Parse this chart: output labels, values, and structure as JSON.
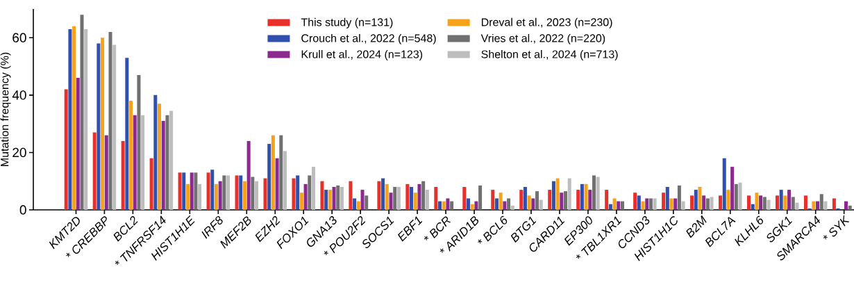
{
  "chart_data": {
    "type": "bar",
    "ylabel": "Mutation frequency (%)",
    "categories": [
      "KMT2D",
      "* CREBBP",
      "BCL2",
      "* TNFRSF14",
      "HIST1H1E",
      "IRF8",
      "MEF2B",
      "EZH2",
      "FOXO1",
      "GNA13",
      "* POU2F2",
      "SOCS1",
      "EBF1",
      "* BCR",
      "* ARID1B",
      "* BCL6",
      "BTG1",
      "CARD11",
      "EP300",
      "* TBL1XR1",
      "CCND3",
      "HIST1H1C",
      "B2M",
      "BCL7A",
      "KLHL6",
      "SGK1",
      "SMARCA4",
      "* SYK"
    ],
    "series": [
      {
        "name": "This study (n=131)",
        "color": "#e8302a",
        "values": [
          42,
          27,
          24,
          18,
          13,
          13,
          12,
          11,
          11,
          10,
          10,
          10,
          9,
          8,
          8,
          7,
          7,
          7,
          7,
          7,
          6,
          6,
          5,
          5,
          5,
          5,
          5,
          4
        ]
      },
      {
        "name": "Crouch et al., 2022 (n=548)",
        "color": "#3050b0",
        "values": [
          63,
          58,
          53,
          40,
          13,
          14,
          12,
          23,
          12,
          7,
          4,
          11,
          8,
          3,
          4,
          4,
          8,
          10,
          9,
          2,
          5,
          8,
          7,
          18,
          2,
          7,
          0.5,
          0.5
        ]
      },
      {
        "name": "Dreval et al., 2023 (n=230)",
        "color": "#f7a21b",
        "values": [
          64,
          60,
          38,
          37,
          9,
          9,
          10,
          26,
          6,
          7,
          3,
          9,
          6,
          3,
          2,
          6,
          5,
          11,
          9,
          4,
          3,
          4,
          8,
          7,
          6,
          5,
          3,
          null
        ]
      },
      {
        "name": "Krull et al., 2024 (n=123)",
        "color": "#8b2a8e",
        "values": [
          46,
          26,
          33,
          31,
          13,
          10,
          24,
          18,
          9,
          8,
          7,
          6,
          9,
          4,
          3,
          3,
          4,
          6,
          7,
          3,
          4,
          4,
          5,
          15,
          5,
          7,
          3,
          3
        ]
      },
      {
        "name": "Vries et al., 2022 (n=220)",
        "color": "#707070",
        "values": [
          68,
          62,
          47,
          33,
          13,
          12,
          11.5,
          26,
          12,
          8.5,
          5,
          8,
          10,
          3,
          8.5,
          4,
          6.5,
          6.5,
          12,
          3,
          4,
          8.5,
          4,
          9,
          4.5,
          4.5,
          5.5,
          1.5
        ]
      },
      {
        "name": "Shelton et al., 2024 (n=713)",
        "color": "#bdbdbd",
        "values": [
          63,
          57.5,
          33,
          34.5,
          9,
          12,
          10,
          20.5,
          15,
          8,
          null,
          8,
          7,
          null,
          null,
          1.5,
          3.5,
          11,
          11.5,
          null,
          4,
          3,
          4.5,
          9.5,
          3.5,
          2.5,
          3,
          null
        ]
      }
    ],
    "ylim": [
      0,
      70
    ],
    "yticks": [
      0,
      20,
      40,
      60
    ],
    "legend": "top"
  }
}
